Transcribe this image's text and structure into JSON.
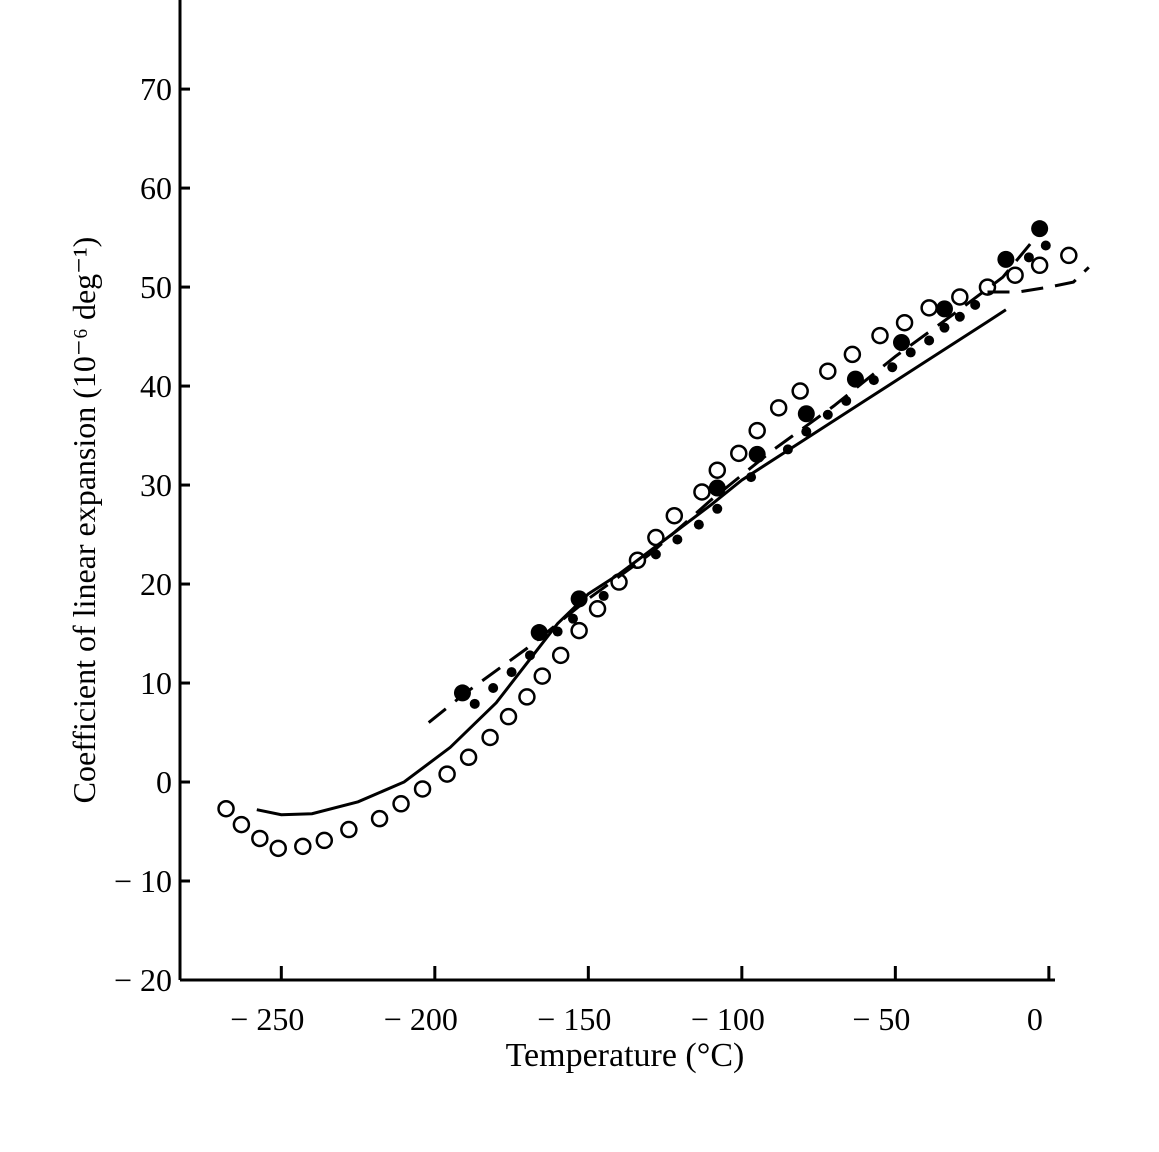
{
  "chart_data": {
    "type": "scatter",
    "title": "",
    "xlabel": "Temperature (°C)",
    "ylabel": "Coefficient of linear expansion (10⁻⁶ deg⁻¹)",
    "xlim": [
      -283,
      2
    ],
    "ylim": [
      -20,
      79
    ],
    "grid": false,
    "x_ticks": [
      -250,
      -200,
      -150,
      -100,
      -50,
      0
    ],
    "x_tick_labels": [
      "− 250",
      "− 200",
      "− 150",
      "− 100",
      "− 50",
      "0"
    ],
    "y_ticks": [
      70,
      60,
      50,
      40,
      30,
      20,
      10,
      0,
      -10,
      -20
    ],
    "y_tick_labels": [
      "70",
      "60",
      "50",
      "40",
      "30",
      "20",
      "10",
      "0",
      "− 10",
      "− 20"
    ],
    "series": [
      {
        "marker": "open-circle",
        "points": [
          [
            -268,
            -2.7
          ],
          [
            -263,
            -4.3
          ],
          [
            -257,
            -5.7
          ],
          [
            -251,
            -6.7
          ],
          [
            -243,
            -6.5
          ],
          [
            -236,
            -5.9
          ],
          [
            -228,
            -4.8
          ],
          [
            -218,
            -3.7
          ],
          [
            -211,
            -2.2
          ],
          [
            -204,
            -0.7
          ],
          [
            -196,
            0.8
          ],
          [
            -189,
            2.5
          ],
          [
            -182,
            4.5
          ],
          [
            -176,
            6.6
          ],
          [
            -170,
            8.6
          ],
          [
            -165,
            10.7
          ],
          [
            -159,
            12.8
          ],
          [
            -153,
            15.3
          ],
          [
            -147,
            17.5
          ],
          [
            -140,
            20.2
          ],
          [
            -134,
            22.4
          ],
          [
            -128,
            24.7
          ],
          [
            -122,
            26.9
          ],
          [
            -113,
            29.3
          ],
          [
            -108,
            31.5
          ],
          [
            -101,
            33.2
          ],
          [
            -95,
            35.5
          ],
          [
            -88,
            37.8
          ],
          [
            -81,
            39.5
          ],
          [
            -72,
            41.5
          ],
          [
            -64,
            43.2
          ],
          [
            -55,
            45.1
          ],
          [
            -47,
            46.4
          ],
          [
            -39,
            47.9
          ],
          [
            -29,
            49.0
          ],
          [
            -20,
            50.0
          ],
          [
            -11,
            51.2
          ],
          [
            -3,
            52.2
          ],
          [
            6.5,
            53.2
          ]
        ]
      },
      {
        "marker": "large-filled-circle",
        "points": [
          [
            -191,
            9.0
          ],
          [
            -166,
            15.1
          ],
          [
            -153,
            18.5
          ],
          [
            -108,
            29.7
          ],
          [
            -95,
            33.1
          ],
          [
            -79,
            37.2
          ],
          [
            -63,
            40.7
          ],
          [
            -48,
            44.4
          ],
          [
            -34,
            47.8
          ],
          [
            -14,
            52.8
          ],
          [
            -3,
            55.9
          ]
        ]
      },
      {
        "marker": "small-filled-circle",
        "points": [
          [
            -187,
            7.9
          ],
          [
            -181,
            9.5
          ],
          [
            -175,
            11.1
          ],
          [
            -169,
            12.8
          ],
          [
            -160,
            15.2
          ],
          [
            -155,
            16.5
          ],
          [
            -145,
            18.8
          ],
          [
            -128,
            23.0
          ],
          [
            -121,
            24.5
          ],
          [
            -114,
            26.0
          ],
          [
            -108,
            27.6
          ],
          [
            -97,
            30.8
          ],
          [
            -85,
            33.6
          ],
          [
            -79,
            35.4
          ],
          [
            -72,
            37.1
          ],
          [
            -66,
            38.5
          ],
          [
            -57,
            40.6
          ],
          [
            -51,
            41.9
          ],
          [
            -45,
            43.4
          ],
          [
            -39,
            44.6
          ],
          [
            -34,
            45.9
          ],
          [
            -29,
            47.0
          ],
          [
            -24,
            48.2
          ],
          [
            -6.5,
            53.0
          ],
          [
            -1,
            54.2
          ]
        ]
      },
      {
        "marker": "solid-line",
        "points": [
          [
            -258,
            -2.8
          ],
          [
            -250,
            -3.3
          ],
          [
            -240,
            -3.2
          ],
          [
            -225,
            -2
          ],
          [
            -210,
            0
          ],
          [
            -195,
            3.5
          ],
          [
            -180,
            8
          ],
          [
            -170,
            12
          ],
          [
            -160,
            16
          ],
          [
            -150,
            19
          ],
          [
            -140,
            21
          ],
          [
            -125,
            24.5
          ],
          [
            -110,
            28
          ],
          [
            -100,
            30.5
          ],
          [
            -80,
            34.5
          ],
          [
            -60,
            38.5
          ],
          [
            -40,
            42.5
          ],
          [
            -20,
            46.5
          ],
          [
            -14,
            47.7
          ]
        ]
      },
      {
        "marker": "dashed-line",
        "points": [
          [
            -202,
            6
          ],
          [
            -190,
            9
          ],
          [
            -170,
            13.5
          ],
          [
            -150,
            18.5
          ],
          [
            -130,
            23
          ],
          [
            -110,
            28.5
          ],
          [
            -90,
            33.5
          ],
          [
            -70,
            38
          ],
          [
            -50,
            43
          ],
          [
            -30,
            47.5
          ],
          [
            -15,
            51
          ],
          [
            -3,
            55.5
          ]
        ]
      },
      {
        "marker": "dashed-line",
        "points": [
          [
            -20,
            49.5
          ],
          [
            -10,
            49.5
          ],
          [
            0,
            50
          ],
          [
            8,
            50.5
          ],
          [
            13,
            52
          ]
        ]
      }
    ]
  }
}
